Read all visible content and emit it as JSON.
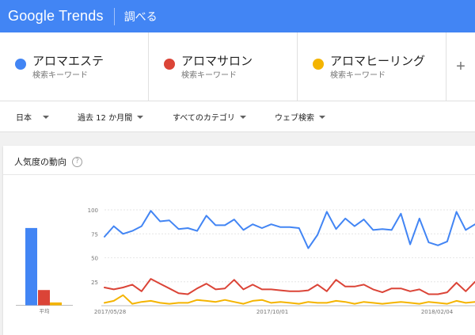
{
  "header": {
    "logo": "Google Trends",
    "explore": "調べる"
  },
  "terms": [
    {
      "name": "アロマエステ",
      "sub": "検索キーワード",
      "color": "#4285f4"
    },
    {
      "name": "アロマサロン",
      "sub": "検索キーワード",
      "color": "#db4437"
    },
    {
      "name": "アロマヒーリング",
      "sub": "検索キーワード",
      "color": "#f4b400"
    }
  ],
  "add_label": "+",
  "filters": {
    "region": "日本",
    "period": "過去 12 か月間",
    "category": "すべてのカテゴリ",
    "search_type": "ウェブ検索"
  },
  "card": {
    "title": "人気度の動向",
    "help": "?"
  },
  "chart_data": {
    "type": "line",
    "y_ticks": [
      "100",
      "75",
      "50",
      "25"
    ],
    "ylim": [
      0,
      100
    ],
    "x_tick_labels": [
      "2017/05/28",
      "2017/10/01",
      "2018/02/04"
    ],
    "average_label": "平均",
    "averages": [
      81,
      16,
      3
    ],
    "series": [
      {
        "color": "#4285f4",
        "values": [
          72,
          83,
          75,
          78,
          83,
          99,
          88,
          89,
          80,
          81,
          78,
          94,
          84,
          84,
          90,
          79,
          85,
          81,
          85,
          82,
          82,
          81,
          60,
          74,
          98,
          80,
          91,
          83,
          90,
          79,
          80,
          79,
          96,
          64,
          91,
          66,
          63,
          67,
          98,
          79,
          85
        ]
      },
      {
        "color": "#db4437",
        "values": [
          19,
          17,
          19,
          22,
          15,
          28,
          23,
          18,
          13,
          12,
          18,
          23,
          17,
          18,
          27,
          17,
          22,
          17,
          17,
          16,
          15,
          15,
          16,
          22,
          15,
          27,
          20,
          20,
          22,
          17,
          14,
          18,
          18,
          15,
          17,
          12,
          12,
          14,
          24,
          15,
          25
        ]
      },
      {
        "color": "#f4b400",
        "values": [
          3,
          5,
          11,
          2,
          4,
          5,
          3,
          2,
          3,
          3,
          6,
          5,
          4,
          6,
          4,
          2,
          5,
          6,
          3,
          4,
          3,
          2,
          4,
          3,
          3,
          5,
          4,
          2,
          4,
          3,
          2,
          3,
          4,
          3,
          2,
          4,
          3,
          2,
          5,
          3,
          4
        ]
      }
    ]
  }
}
